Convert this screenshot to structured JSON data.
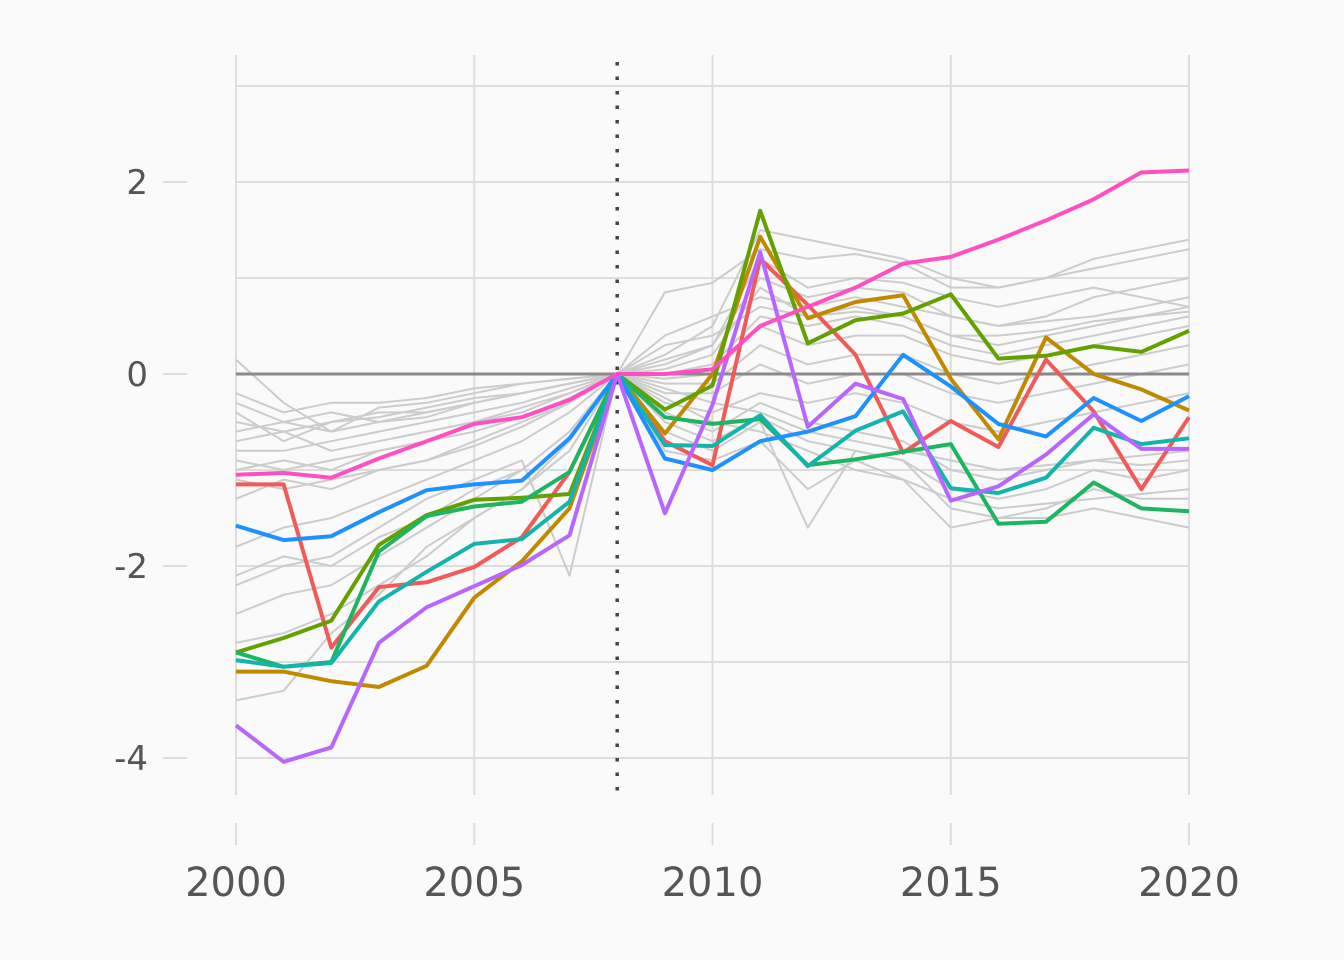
{
  "chart_data": {
    "type": "line",
    "title": "",
    "xlabel": "",
    "ylabel": "",
    "xlim": [
      2000,
      2020
    ],
    "ylim": [
      -4.7,
      3.3
    ],
    "x_ticks": [
      {
        "value": 2000,
        "label": "2000"
      },
      {
        "value": 2005,
        "label": "2005"
      },
      {
        "value": 2010,
        "label": "2010"
      },
      {
        "value": 2015,
        "label": "2015"
      },
      {
        "value": 2020,
        "label": "2020"
      }
    ],
    "y_ticks": [
      {
        "value": 2,
        "label": "2"
      },
      {
        "value": 0,
        "label": "0"
      },
      {
        "value": -2,
        "label": "-2"
      },
      {
        "value": -4,
        "label": "-4"
      }
    ],
    "grid": true,
    "reference_line_y": 0,
    "event_line_x": 2008,
    "x": [
      2000,
      2001,
      2002,
      2003,
      2004,
      2005,
      2006,
      2007,
      2008,
      2009,
      2010,
      2011,
      2012,
      2013,
      2014,
      2015,
      2016,
      2017,
      2018,
      2019,
      2020
    ],
    "background_color": "#cccccc",
    "background_series": [
      [
        0.15,
        -0.3,
        -0.6,
        -0.35,
        -0.3,
        -0.2,
        -0.1,
        -0.05,
        0,
        0.15,
        0.3,
        1.2,
        0.9,
        1.0,
        0.95,
        0.8,
        0.7,
        0.8,
        0.9,
        0.8,
        0.7
      ],
      [
        -0.2,
        -0.4,
        -0.3,
        -0.3,
        -0.25,
        -0.15,
        -0.1,
        -0.05,
        0,
        0.2,
        0.5,
        1.5,
        1.4,
        1.3,
        1.2,
        1.0,
        0.9,
        1.0,
        1.2,
        1.3,
        1.4
      ],
      [
        -0.4,
        -0.7,
        -0.5,
        -0.45,
        -0.35,
        -0.25,
        -0.2,
        -0.1,
        0,
        0.1,
        0.3,
        1.0,
        0.8,
        0.9,
        0.85,
        0.6,
        0.5,
        0.55,
        0.6,
        0.7,
        0.8
      ],
      [
        -0.6,
        -0.5,
        -0.6,
        -0.5,
        -0.4,
        -0.3,
        -0.2,
        -0.1,
        0,
        0.05,
        0.2,
        0.9,
        0.6,
        0.7,
        0.6,
        0.4,
        0.3,
        0.4,
        0.5,
        0.6,
        0.7
      ],
      [
        -0.8,
        -0.8,
        -0.7,
        -0.6,
        -0.5,
        -0.4,
        -0.3,
        -0.15,
        0,
        0.0,
        0.1,
        0.6,
        0.5,
        0.6,
        0.5,
        0.3,
        0.2,
        0.3,
        0.4,
        0.5,
        0.6
      ],
      [
        -1.0,
        -0.9,
        -1.0,
        -0.8,
        -0.7,
        -0.5,
        -0.4,
        -0.2,
        0,
        -0.05,
        0.0,
        0.5,
        0.3,
        0.4,
        0.4,
        0.2,
        0.1,
        0.2,
        0.3,
        0.4,
        0.5
      ],
      [
        -1.3,
        -1.1,
        -1.2,
        -1.0,
        -0.9,
        -0.7,
        -0.5,
        -0.3,
        0,
        -0.1,
        -0.1,
        0.3,
        0.1,
        0.2,
        0.2,
        0.0,
        -0.1,
        0.0,
        0.1,
        0.2,
        0.3
      ],
      [
        -1.8,
        -1.6,
        -1.5,
        -1.3,
        -1.1,
        -0.9,
        -0.7,
        -0.4,
        0,
        -0.2,
        -0.2,
        0.1,
        -0.1,
        0.0,
        0.0,
        -0.2,
        -0.3,
        -0.2,
        -0.1,
        0.0,
        0.1
      ],
      [
        -2.1,
        -1.9,
        -2.0,
        -1.7,
        -1.5,
        -1.2,
        -1.0,
        -0.6,
        0,
        -0.3,
        -0.4,
        -0.2,
        -0.3,
        -0.2,
        -0.3,
        -0.5,
        -0.6,
        -0.5,
        -0.4,
        -0.3,
        -0.2
      ],
      [
        -2.2,
        -2.0,
        -1.9,
        -1.6,
        -1.3,
        -1.1,
        -0.9,
        -2.1,
        0,
        -0.6,
        -0.8,
        -0.5,
        -1.6,
        -0.8,
        -0.9,
        -1.2,
        -1.3,
        -1.2,
        -1.0,
        -1.1,
        -1.0
      ],
      [
        -3.4,
        -3.3,
        -2.7,
        -2.3,
        -1.8,
        -1.5,
        -1.2,
        -0.8,
        0,
        -0.8,
        -0.9,
        -0.7,
        -1.2,
        -0.9,
        -1.1,
        -1.6,
        -1.5,
        -1.5,
        -1.4,
        -1.5,
        -1.6
      ],
      [
        -0.3,
        -0.5,
        -0.4,
        -0.5,
        -0.45,
        -0.3,
        -0.2,
        -0.1,
        0,
        0.85,
        0.95,
        1.3,
        1.2,
        1.25,
        1.15,
        0.9,
        0.9,
        1.0,
        1.1,
        1.2,
        1.3
      ],
      [
        -0.5,
        -0.6,
        -0.5,
        -0.4,
        -0.4,
        -0.3,
        -0.2,
        -0.1,
        0,
        0.4,
        0.6,
        0.8,
        0.7,
        0.8,
        0.7,
        0.6,
        0.5,
        0.6,
        0.8,
        0.9,
        1.0
      ],
      [
        -0.7,
        -0.6,
        -0.8,
        -0.7,
        -0.6,
        -0.5,
        -0.35,
        -0.2,
        0,
        0.3,
        0.4,
        0.7,
        0.6,
        0.65,
        0.6,
        0.4,
        0.4,
        0.45,
        0.55,
        0.6,
        0.65
      ],
      [
        -0.9,
        -1.0,
        -0.9,
        -0.8,
        -0.7,
        -0.6,
        -0.45,
        -0.25,
        0,
        -0.15,
        -0.3,
        -0.4,
        -0.6,
        -0.7,
        -0.8,
        -0.9,
        -1.0,
        -0.95,
        -0.9,
        -0.85,
        -0.8
      ],
      [
        -1.1,
        -1.2,
        -1.1,
        -1.0,
        -0.9,
        -0.75,
        -0.55,
        -0.3,
        0,
        -0.25,
        -0.5,
        -0.6,
        -0.8,
        -1.0,
        -1.1,
        -1.3,
        -1.4,
        -1.35,
        -1.3,
        -1.25,
        -1.2
      ],
      [
        -2.5,
        -2.3,
        -2.2,
        -1.9,
        -1.6,
        -1.3,
        -1.0,
        -0.6,
        0,
        -0.4,
        -0.6,
        -0.3,
        -0.5,
        -0.6,
        -0.7,
        -1.0,
        -1.1,
        -1.0,
        -0.9,
        -0.95,
        -0.9
      ],
      [
        -2.8,
        -2.7,
        -2.5,
        -2.2,
        -1.9,
        -1.5,
        -1.2,
        -0.7,
        0,
        -0.5,
        -0.7,
        -0.45,
        -0.7,
        -0.8,
        -0.9,
        -1.4,
        -1.5,
        -1.4,
        -1.2,
        -1.3,
        -1.3
      ]
    ],
    "series": [
      {
        "color": "#ff4fc3",
        "values": [
          -1.05,
          -1.03,
          -1.08,
          -0.88,
          -0.7,
          -0.52,
          -0.45,
          -0.27,
          0,
          0,
          0.05,
          0.5,
          0.7,
          0.9,
          1.15,
          1.22,
          1.4,
          1.6,
          1.82,
          2.1,
          2.12
        ]
      },
      {
        "color": "#f25a5a",
        "values": [
          -1.15,
          -1.15,
          -2.85,
          -2.22,
          -2.17,
          -2.01,
          -1.7,
          -1.02,
          0,
          -0.7,
          -0.95,
          1.2,
          0.72,
          0.2,
          -0.82,
          -0.49,
          -0.76,
          0.15,
          -0.39,
          -1.2,
          -0.45
        ]
      },
      {
        "color": "#bf8a00",
        "values": [
          -3.1,
          -3.1,
          -3.2,
          -3.26,
          -3.04,
          -2.33,
          -1.95,
          -1.4,
          0,
          -0.62,
          0.0,
          1.43,
          0.58,
          0.75,
          0.82,
          -0.05,
          -0.68,
          0.38,
          0.0,
          -0.16,
          -0.38
        ]
      },
      {
        "color": "#63a000",
        "values": [
          -2.9,
          -2.75,
          -2.57,
          -1.78,
          -1.47,
          -1.31,
          -1.29,
          -1.25,
          0,
          -0.37,
          -0.12,
          1.7,
          0.32,
          0.56,
          0.63,
          0.83,
          0.16,
          0.19,
          0.29,
          0.23,
          0.45
        ]
      },
      {
        "color": "#1db462",
        "values": [
          -2.9,
          -3.05,
          -3.0,
          -1.85,
          -1.48,
          -1.38,
          -1.33,
          -1.02,
          0,
          -0.45,
          -0.52,
          -0.47,
          -0.95,
          -0.89,
          -0.81,
          -0.73,
          -1.56,
          -1.54,
          -1.13,
          -1.4,
          -1.43
        ]
      },
      {
        "color": "#14b3ac",
        "values": [
          -2.98,
          -3.05,
          -3.01,
          -2.37,
          -2.06,
          -1.77,
          -1.72,
          -1.33,
          0,
          -0.74,
          -0.75,
          -0.43,
          -0.96,
          -0.59,
          -0.39,
          -1.19,
          -1.24,
          -1.08,
          -0.56,
          -0.73,
          -0.67
        ]
      },
      {
        "color": "#1e90ff",
        "values": [
          -1.58,
          -1.73,
          -1.69,
          -1.44,
          -1.21,
          -1.15,
          -1.11,
          -0.67,
          0,
          -0.88,
          -1.0,
          -0.7,
          -0.6,
          -0.44,
          0.2,
          -0.13,
          -0.52,
          -0.65,
          -0.25,
          -0.49,
          -0.23
        ]
      },
      {
        "color": "#b866ff",
        "values": [
          -3.66,
          -4.04,
          -3.89,
          -2.8,
          -2.43,
          -2.21,
          -1.99,
          -1.68,
          0,
          -1.45,
          -0.32,
          1.27,
          -0.55,
          -0.1,
          -0.26,
          -1.32,
          -1.17,
          -0.84,
          -0.42,
          -0.78,
          -0.78
        ]
      }
    ]
  }
}
